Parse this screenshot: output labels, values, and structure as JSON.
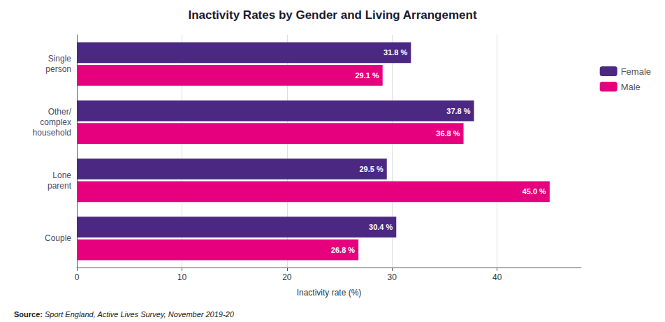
{
  "chart_data": {
    "type": "bar",
    "orientation": "horizontal",
    "title": "Inactivity Rates by Gender and Living Arrangement",
    "categories": [
      "Single\nperson",
      "Other/\ncomplex\nhousehold",
      "Lone\nparent",
      "Couple"
    ],
    "series": [
      {
        "name": "Female",
        "color": "#4B2882",
        "values": [
          31.8,
          37.8,
          29.5,
          30.4
        ],
        "value_labels": [
          "31.8 %",
          "37.8 %",
          "29.5 %",
          "30.4 %"
        ]
      },
      {
        "name": "Male",
        "color": "#E6007E",
        "values": [
          29.1,
          36.8,
          45.0,
          26.8
        ],
        "value_labels": [
          "29.1 %",
          "36.8 %",
          "45.0 %",
          "26.8 %"
        ]
      }
    ],
    "xlabel": "Inactivity rate (%)",
    "xlim": [
      0,
      48
    ],
    "xticks": [
      0,
      10,
      20,
      30,
      40
    ],
    "grid": true,
    "legend": "right",
    "data_labels": true,
    "annotations": [
      "Source:",
      "Sport England, Active Lives Survey, November 2019-20"
    ]
  }
}
